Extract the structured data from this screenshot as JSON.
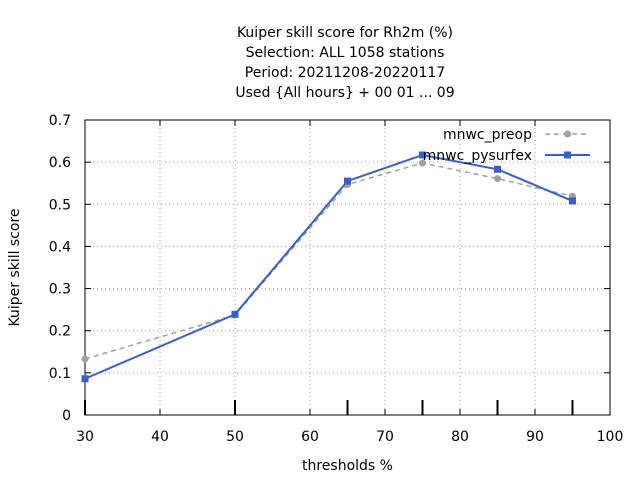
{
  "chart_data": {
    "type": "line",
    "title_lines": [
      "Kuiper skill score  for Rh2m (%)",
      "Selection: ALL   1058 stations",
      "Period: 20211208-20220117",
      "Used {All hours} + 00 01 ... 09"
    ],
    "xlabel": "thresholds %",
    "ylabel": "Kuiper skill score",
    "xlim": [
      30,
      100
    ],
    "ylim": [
      0,
      0.7
    ],
    "x_ticks": [
      "30",
      "40",
      "50",
      "60",
      "70",
      "80",
      "90",
      "100"
    ],
    "y_ticks": [
      "0",
      "0.1",
      "0.2",
      "0.3",
      "0.4",
      "0.5",
      "0.6",
      "0.7"
    ],
    "grid": true,
    "legend_position": "top-right",
    "threshold_marks": [
      30,
      50,
      65,
      75,
      85,
      95
    ],
    "series": [
      {
        "name": "mnwc_preop",
        "color": "#a0a0a0",
        "dashed": true,
        "marker": "circle",
        "x": [
          30,
          50,
          65,
          75,
          85,
          95
        ],
        "y": [
          0.133,
          0.237,
          0.547,
          0.598,
          0.561,
          0.519
        ]
      },
      {
        "name": "mnwc_pysurfex",
        "color": "#3a5fcd",
        "dashed": false,
        "marker": "square",
        "x": [
          30,
          50,
          65,
          75,
          85,
          95
        ],
        "y": [
          0.086,
          0.239,
          0.555,
          0.617,
          0.583,
          0.508
        ]
      }
    ]
  }
}
